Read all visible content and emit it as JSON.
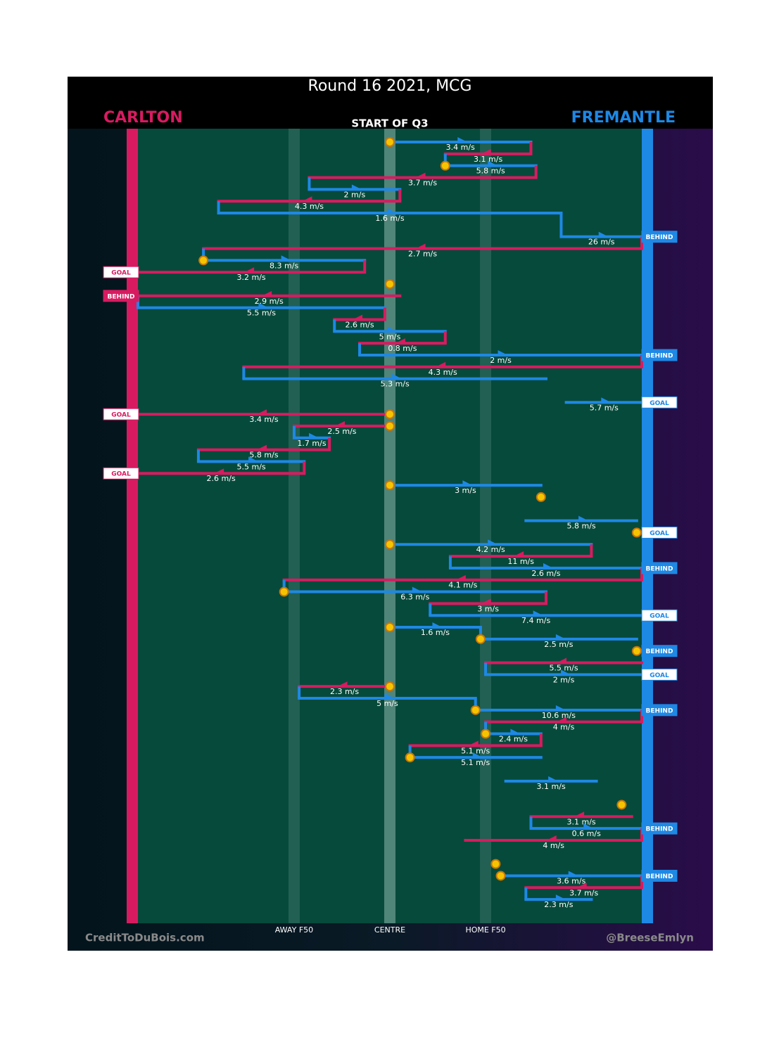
{
  "chart_data": {
    "type": "possession-flow",
    "title": "Round 16 2021, MCG",
    "subtitle": "START OF Q3",
    "credit_left": "CreditToDuBois.com",
    "credit_right": "@BreeseEmlyn",
    "series": [
      {
        "name": "CARLTON",
        "color": "#d81b60"
      },
      {
        "name": "FREMANTLE",
        "color": "#1e88e5"
      }
    ],
    "xlim": [
      0,
      100
    ],
    "xticks": [
      {
        "value": 31,
        "label": "AWAY F50"
      },
      {
        "value": 50,
        "label": "CENTRE"
      },
      {
        "value": 69,
        "label": "HOME F50"
      }
    ],
    "possessions": [
      {
        "row": 0,
        "team": 1,
        "from": 50,
        "to": 78,
        "label": "3.4 m/s"
      },
      {
        "row": 1,
        "team": 0,
        "from": 78,
        "to": 61,
        "label": "3.1 m/s"
      },
      {
        "row": 2,
        "team": 1,
        "from": 61,
        "to": 79,
        "label": "5.8 m/s"
      },
      {
        "row": 3,
        "team": 0,
        "from": 79,
        "to": 34,
        "label": "3.7 m/s"
      },
      {
        "row": 4,
        "team": 1,
        "from": 34,
        "to": 52,
        "label": "2 m/s"
      },
      {
        "row": 5,
        "team": 0,
        "from": 52,
        "to": 16,
        "label": "4.3 m/s"
      },
      {
        "row": 6,
        "team": 1,
        "from": 16,
        "to": 84,
        "label": "1.6 m/s"
      },
      {
        "row": 8,
        "team": 1,
        "from": 84,
        "to": 100,
        "label": "26 m/s"
      },
      {
        "row": 9,
        "team": 0,
        "from": 100,
        "to": 13,
        "label": "2.7 m/s"
      },
      {
        "row": 10,
        "team": 1,
        "from": 13,
        "to": 45,
        "label": "8.3 m/s"
      },
      {
        "row": 11,
        "team": 0,
        "from": 45,
        "to": 0,
        "label": "3.2 m/s"
      },
      {
        "row": 13,
        "team": 0,
        "from": 52,
        "to": 0,
        "label": "2.9 m/s"
      },
      {
        "row": 14,
        "team": 1,
        "from": 0,
        "to": 49,
        "label": "5.5 m/s"
      },
      {
        "row": 15,
        "team": 0,
        "from": 49,
        "to": 39,
        "label": "2.6 m/s"
      },
      {
        "row": 16,
        "team": 1,
        "from": 39,
        "to": 61,
        "label": "5 m/s"
      },
      {
        "row": 17,
        "team": 0,
        "from": 61,
        "to": 44,
        "label": "0.8 m/s"
      },
      {
        "row": 18,
        "team": 1,
        "from": 44,
        "to": 100,
        "label": "2 m/s"
      },
      {
        "row": 19,
        "team": 0,
        "from": 100,
        "to": 21,
        "label": "4.3 m/s"
      },
      {
        "row": 20,
        "team": 1,
        "from": 21,
        "to": 81,
        "label": "5.3 m/s"
      },
      {
        "row": 22,
        "team": 1,
        "from": 85,
        "to": 100,
        "label": "5.7 m/s"
      },
      {
        "row": 23,
        "team": 0,
        "from": 50,
        "to": 0,
        "label": "3.4 m/s"
      },
      {
        "row": 24,
        "team": 0,
        "from": 50,
        "to": 31,
        "label": "2.5 m/s"
      },
      {
        "row": 25,
        "team": 1,
        "from": 31,
        "to": 38,
        "label": "1.7 m/s"
      },
      {
        "row": 26,
        "team": 0,
        "from": 38,
        "to": 12,
        "label": "5.8 m/s"
      },
      {
        "row": 27,
        "team": 1,
        "from": 12,
        "to": 33,
        "label": "5.5 m/s"
      },
      {
        "row": 28,
        "team": 0,
        "from": 33,
        "to": 0,
        "label": "2.6 m/s"
      },
      {
        "row": 29,
        "team": 1,
        "from": 50,
        "to": 80,
        "label": "3 m/s"
      },
      {
        "row": 32,
        "team": 1,
        "from": 77,
        "to": 99,
        "label": "5.8 m/s"
      },
      {
        "row": 34,
        "team": 1,
        "from": 50,
        "to": 90,
        "label": "4.2 m/s"
      },
      {
        "row": 35,
        "team": 0,
        "from": 90,
        "to": 62,
        "label": "11 m/s"
      },
      {
        "row": 36,
        "team": 1,
        "from": 62,
        "to": 100,
        "label": "2.6 m/s"
      },
      {
        "row": 37,
        "team": 0,
        "from": 100,
        "to": 29,
        "label": "4.1 m/s"
      },
      {
        "row": 38,
        "team": 1,
        "from": 29,
        "to": 81,
        "label": "6.3 m/s"
      },
      {
        "row": 39,
        "team": 0,
        "from": 81,
        "to": 58,
        "label": "3 m/s"
      },
      {
        "row": 40,
        "team": 1,
        "from": 58,
        "to": 100,
        "label": "7.4 m/s"
      },
      {
        "row": 41,
        "team": 1,
        "from": 50,
        "to": 68,
        "label": "1.6 m/s"
      },
      {
        "row": 42,
        "team": 1,
        "from": 68,
        "to": 99,
        "label": "2.5 m/s"
      },
      {
        "row": 44,
        "team": 0,
        "from": 100,
        "to": 69,
        "label": "5.5 m/s"
      },
      {
        "row": 45,
        "team": 1,
        "from": 69,
        "to": 100,
        "label": "2 m/s"
      },
      {
        "row": 46,
        "team": 0,
        "from": 50,
        "to": 32,
        "label": "2.3 m/s"
      },
      {
        "row": 47,
        "team": 1,
        "from": 32,
        "to": 67,
        "label": "5 m/s"
      },
      {
        "row": 48,
        "team": 1,
        "from": 67,
        "to": 100,
        "label": "10.6 m/s"
      },
      {
        "row": 49,
        "team": 0,
        "from": 100,
        "to": 69,
        "label": "4 m/s"
      },
      {
        "row": 50,
        "team": 1,
        "from": 69,
        "to": 80,
        "label": "2.4 m/s"
      },
      {
        "row": 51,
        "team": 0,
        "from": 80,
        "to": 54,
        "label": "5.1 m/s"
      },
      {
        "row": 52,
        "team": 1,
        "from": 54,
        "to": 80,
        "label": "5.1 m/s"
      },
      {
        "row": 54,
        "team": 1,
        "from": 73,
        "to": 91,
        "label": "3.1 m/s"
      },
      {
        "row": 57,
        "team": 0,
        "from": 98,
        "to": 78,
        "label": "3.1 m/s"
      },
      {
        "row": 58,
        "team": 1,
        "from": 78,
        "to": 100,
        "label": "0.6 m/s"
      },
      {
        "row": 59,
        "team": 0,
        "from": 100,
        "to": 65,
        "label": "4 m/s"
      },
      {
        "row": 62,
        "team": 1,
        "from": 72,
        "to": 100,
        "label": "3.6 m/s"
      },
      {
        "row": 63,
        "team": 0,
        "from": 100,
        "to": 77,
        "label": "3.7 m/s"
      },
      {
        "row": 64,
        "team": 1,
        "from": 77,
        "to": 90,
        "label": "2.3 m/s"
      }
    ],
    "stoppages": [
      {
        "row": 0,
        "x": 50
      },
      {
        "row": 2,
        "x": 61
      },
      {
        "row": 10,
        "x": 13
      },
      {
        "row": 12,
        "x": 50
      },
      {
        "row": 23,
        "x": 50
      },
      {
        "row": 24,
        "x": 50
      },
      {
        "row": 29,
        "x": 50
      },
      {
        "row": 30,
        "x": 80
      },
      {
        "row": 33,
        "x": 99
      },
      {
        "row": 34,
        "x": 50
      },
      {
        "row": 38,
        "x": 29
      },
      {
        "row": 41,
        "x": 50
      },
      {
        "row": 42,
        "x": 68
      },
      {
        "row": 43,
        "x": 99
      },
      {
        "row": 46,
        "x": 50
      },
      {
        "row": 48,
        "x": 67
      },
      {
        "row": 50,
        "x": 69
      },
      {
        "row": 52,
        "x": 54
      },
      {
        "row": 56,
        "x": 96
      },
      {
        "row": 61,
        "x": 71
      },
      {
        "row": 62,
        "x": 72
      }
    ],
    "outcomes": [
      {
        "row": 8,
        "team": 1,
        "label": "BEHIND"
      },
      {
        "row": 11,
        "team": 0,
        "label": "GOAL"
      },
      {
        "row": 13,
        "team": 0,
        "label": "BEHIND"
      },
      {
        "row": 18,
        "team": 1,
        "label": "BEHIND"
      },
      {
        "row": 22,
        "team": 1,
        "label": "GOAL"
      },
      {
        "row": 23,
        "team": 0,
        "label": "GOAL"
      },
      {
        "row": 28,
        "team": 0,
        "label": "GOAL"
      },
      {
        "row": 33,
        "team": 1,
        "label": "GOAL"
      },
      {
        "row": 36,
        "team": 1,
        "label": "BEHIND"
      },
      {
        "row": 40,
        "team": 1,
        "label": "GOAL"
      },
      {
        "row": 43,
        "team": 1,
        "label": "BEHIND"
      },
      {
        "row": 45,
        "team": 1,
        "label": "GOAL"
      },
      {
        "row": 48,
        "team": 1,
        "label": "BEHIND"
      },
      {
        "row": 58,
        "team": 1,
        "label": "BEHIND"
      },
      {
        "row": 62,
        "team": 1,
        "label": "BEHIND"
      }
    ]
  }
}
